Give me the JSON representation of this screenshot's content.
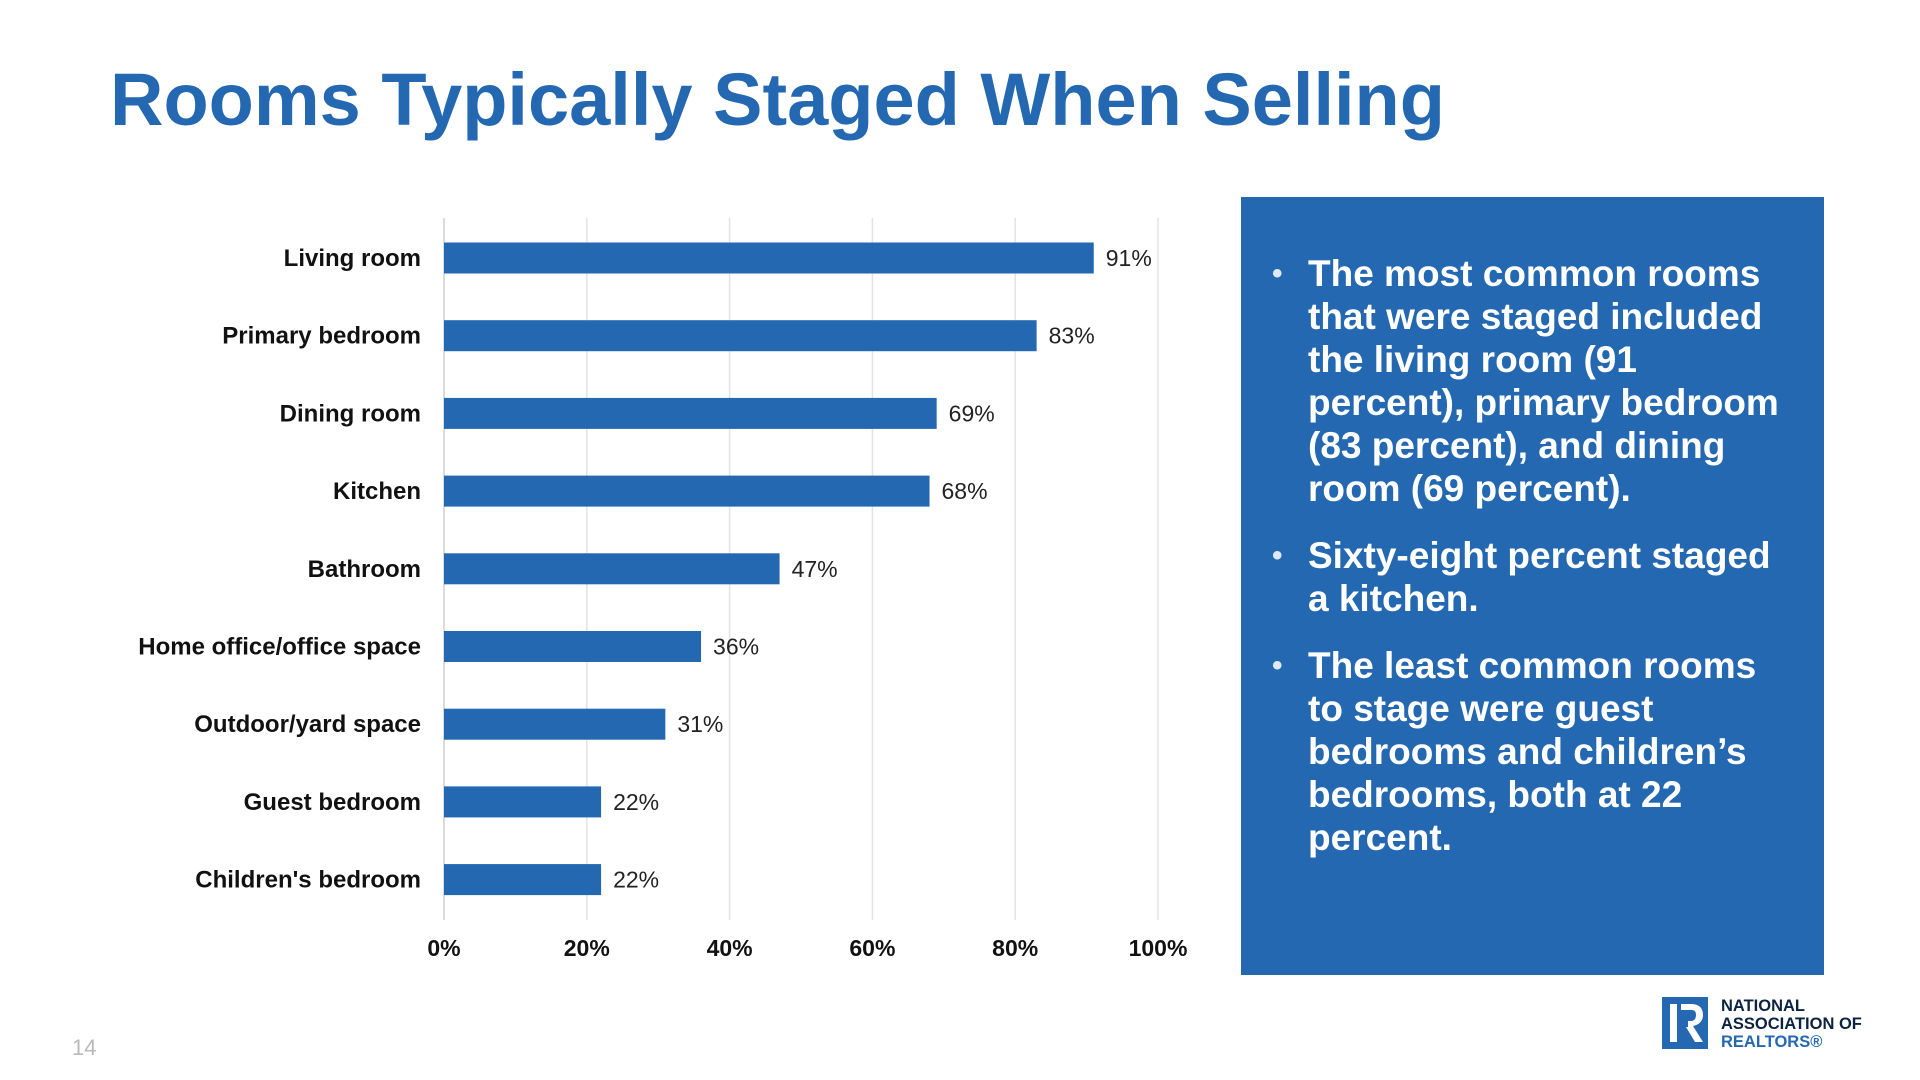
{
  "page": {
    "title": "Rooms Typically Staged When Selling",
    "page_number": "14"
  },
  "callout": {
    "bullets": [
      "The most common rooms that were staged included the living room (91 percent), primary bedroom (83 percent), and dining room (69 percent).",
      "Sixty-eight percent staged a kitchen.",
      "The least common rooms to stage were guest bedrooms and children’s bedrooms, both at 22 percent."
    ],
    "bullet_glyph": "•",
    "background_color": "#2468b1"
  },
  "logo": {
    "line1": "NATIONAL",
    "line2": "ASSOCIATION OF",
    "line3": "REALTORS®",
    "mark_icon": "realtor-r-block-icon"
  },
  "colors": {
    "accent": "#2468b1",
    "bar": "#2468b1",
    "grid": "#e3e3e3"
  },
  "chart_data": {
    "type": "bar",
    "orientation": "horizontal",
    "categories": [
      "Living room",
      "Primary bedroom",
      "Dining room",
      "Kitchen",
      "Bathroom",
      "Home office/office space",
      "Outdoor/yard space",
      "Guest bedroom",
      "Children's bedroom"
    ],
    "values": [
      91,
      83,
      69,
      68,
      47,
      36,
      31,
      22,
      22
    ],
    "value_labels": [
      "91%",
      "83%",
      "69%",
      "68%",
      "47%",
      "36%",
      "31%",
      "22%",
      "22%"
    ],
    "xlim": [
      0,
      100
    ],
    "xticks": [
      0,
      20,
      40,
      60,
      80,
      100
    ],
    "xtick_labels": [
      "0%",
      "20%",
      "40%",
      "60%",
      "80%",
      "100%"
    ],
    "grid": true,
    "legend": false
  }
}
